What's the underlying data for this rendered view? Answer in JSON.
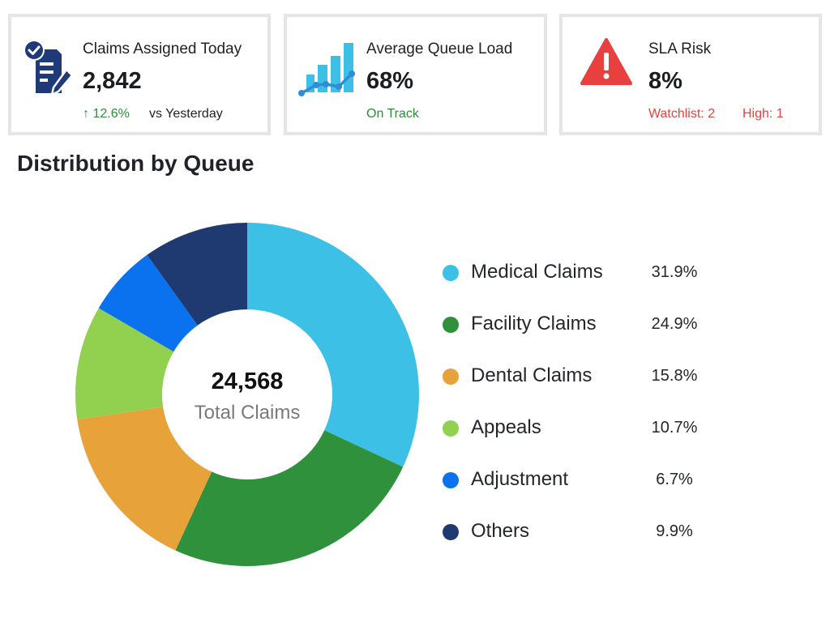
{
  "kpis": [
    {
      "title": "Claims Assigned Today",
      "value": "2,842",
      "change": "↑ 12.6%",
      "comparison": "vs Yesterday",
      "icon": "clipboard-check-pen-icon"
    },
    {
      "title": "Average Queue Load",
      "value": "68%",
      "status": "On Track",
      "icon": "bar-line-chart-icon"
    },
    {
      "title": "SLA Risk",
      "value": "8%",
      "watchlist": "Watchlist: 2",
      "high": "High: 1",
      "icon": "warning-triangle-icon"
    }
  ],
  "section": {
    "title": "Distribution by Queue"
  },
  "center": {
    "value": "24,568",
    "label": "Total Claims"
  },
  "colors": {
    "green": "#2e8b3d",
    "red": "#e8403f",
    "navy": "#1e3a78",
    "sky": "#3cc0e5"
  },
  "chart_data": {
    "type": "pie",
    "title": "Distribution by Queue",
    "legend_position": "right",
    "total": 24568,
    "categories": [
      "Medical Claims",
      "Facility Claims",
      "Dental Claims",
      "Appeals",
      "Adjustment",
      "Others"
    ],
    "values": [
      31.9,
      24.9,
      15.8,
      10.7,
      6.7,
      9.9
    ],
    "labels": [
      "31.9%",
      "24.9%",
      "15.8%",
      "10.7%",
      "6.7%",
      "9.9%"
    ],
    "colors": [
      "#3cc0e5",
      "#2f913b",
      "#e8a23a",
      "#92d14f",
      "#0a72ef",
      "#1e3a70"
    ]
  }
}
